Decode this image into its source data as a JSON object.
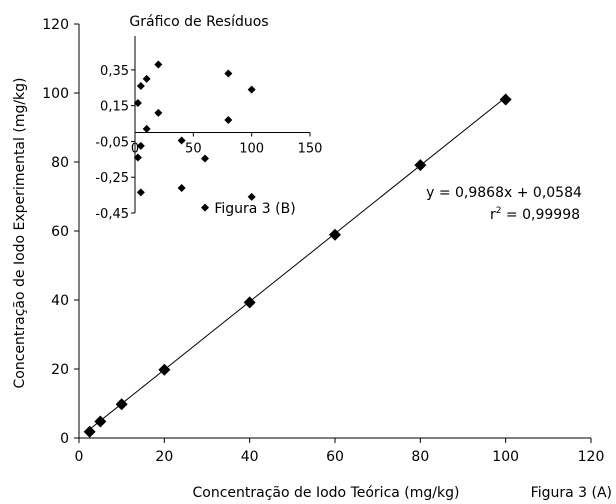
{
  "chart_data": [
    {
      "type": "scatter",
      "panel": "main",
      "xlabel": "Concentração de Iodo Teórica (mg/kg)",
      "ylabel": "Concentração de Iodo Experimental (mg/kg)",
      "figure_label": "Figura 3 (A)",
      "xlim": [
        0,
        120
      ],
      "ylim": [
        0,
        120
      ],
      "x_ticks": [
        0,
        20,
        40,
        60,
        80,
        100,
        120
      ],
      "y_ticks": [
        0,
        20,
        40,
        60,
        80,
        100,
        120
      ],
      "points": [
        {
          "x": 2.5,
          "y": 1.8
        },
        {
          "x": 5,
          "y": 4.8
        },
        {
          "x": 10,
          "y": 9.8
        },
        {
          "x": 20,
          "y": 19.8
        },
        {
          "x": 40,
          "y": 39.3
        },
        {
          "x": 60,
          "y": 58.9
        },
        {
          "x": 80,
          "y": 79.1
        },
        {
          "x": 100,
          "y": 98.1
        }
      ],
      "fit_line": {
        "slope": 0.9868,
        "intercept": 0.0584,
        "x_range": [
          2,
          100
        ]
      },
      "equation_text": "y = 0,9868x + 0,0584",
      "r2_label": "r",
      "r2_sup": "2",
      "r2_value_text": " = 0,99998",
      "grid": false,
      "legend": "none"
    },
    {
      "type": "scatter",
      "panel": "inset",
      "title": "Gráfico de Resíduos",
      "figure_label": "Figura 3 (B)",
      "xlim": [
        0,
        150
      ],
      "ylim": [
        -0.45,
        0.45
      ],
      "x_ticks": [
        0,
        50,
        100,
        150
      ],
      "x_tick_labels": [
        "0",
        "50",
        "100",
        "150"
      ],
      "y_ticks": [
        0.35,
        0.15,
        -0.05,
        -0.25,
        -0.45
      ],
      "y_tick_labels": [
        "0,35",
        "0,15",
        "-0,05",
        "-0,25",
        "-0,45"
      ],
      "zero_line_y": 0,
      "points": [
        {
          "x": 2.5,
          "y": 0.165
        },
        {
          "x": 2.5,
          "y": -0.14
        },
        {
          "x": 5,
          "y": 0.26
        },
        {
          "x": 5,
          "y": -0.075
        },
        {
          "x": 5,
          "y": -0.335
        },
        {
          "x": 10,
          "y": 0.3
        },
        {
          "x": 10,
          "y": 0.02
        },
        {
          "x": 20,
          "y": 0.38
        },
        {
          "x": 20,
          "y": 0.11
        },
        {
          "x": 40,
          "y": -0.045
        },
        {
          "x": 40,
          "y": -0.31
        },
        {
          "x": 60,
          "y": -0.145
        },
        {
          "x": 60,
          "y": -0.42
        },
        {
          "x": 80,
          "y": 0.33
        },
        {
          "x": 80,
          "y": 0.07
        },
        {
          "x": 100,
          "y": 0.24
        },
        {
          "x": 100,
          "y": -0.36
        }
      ]
    }
  ]
}
